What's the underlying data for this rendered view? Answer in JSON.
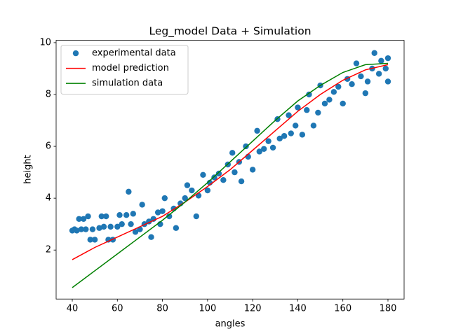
{
  "chart_data": {
    "type": "scatter",
    "title": "Leg_model Data + Simulation",
    "x_label": "angles",
    "y_label": "height",
    "xlim": [
      32.84,
      187.16
    ],
    "ylim": [
      0.11,
      10.09
    ],
    "xticks": [
      40,
      60,
      80,
      100,
      120,
      140,
      160,
      180
    ],
    "yticks": [
      2,
      4,
      6,
      8,
      10
    ],
    "legend": "upper left",
    "series": [
      {
        "name": "experimental data",
        "color": "#1f77b4",
        "style": "marker",
        "x": [
          40,
          41,
          42,
          43,
          44,
          45,
          46,
          47,
          48,
          49,
          50,
          52,
          53,
          54,
          55,
          56,
          57,
          58,
          60,
          61,
          62,
          64,
          65,
          66,
          67,
          68,
          70,
          71,
          72,
          74,
          75,
          76,
          78,
          79,
          80,
          81,
          83,
          85,
          86,
          88,
          90,
          91,
          93,
          95,
          96,
          98,
          100,
          101,
          103,
          105,
          107,
          109,
          111,
          112,
          114,
          115,
          117,
          118,
          120,
          122,
          123,
          125,
          127,
          129,
          131,
          132,
          134,
          136,
          137,
          139,
          140,
          142,
          144,
          145,
          147,
          149,
          150,
          152,
          154,
          156,
          158,
          160,
          162,
          164,
          166,
          168,
          170,
          171,
          173,
          174,
          176,
          177,
          179,
          180,
          180
        ],
        "values": [
          2.75,
          2.8,
          2.75,
          3.2,
          2.8,
          3.2,
          2.8,
          3.3,
          2.4,
          2.8,
          2.4,
          2.85,
          3.3,
          2.9,
          3.3,
          2.4,
          2.9,
          2.4,
          2.9,
          3.35,
          3.0,
          3.35,
          4.25,
          3.0,
          3.4,
          2.7,
          2.8,
          3.75,
          3.0,
          3.1,
          2.5,
          3.2,
          3.45,
          3.0,
          3.5,
          4.0,
          3.3,
          3.6,
          2.85,
          3.8,
          4.0,
          4.5,
          4.3,
          3.3,
          4.1,
          4.9,
          4.3,
          4.6,
          4.8,
          4.95,
          4.7,
          5.3,
          5.75,
          5.0,
          5.4,
          4.65,
          6.0,
          5.6,
          5.1,
          6.6,
          5.8,
          5.9,
          6.2,
          5.95,
          7.05,
          6.3,
          6.4,
          7.2,
          6.5,
          6.8,
          7.5,
          6.45,
          7.4,
          8.0,
          6.8,
          7.3,
          8.35,
          7.65,
          7.8,
          8.1,
          8.3,
          7.65,
          8.6,
          8.4,
          9.2,
          8.7,
          8.05,
          8.5,
          9.0,
          9.6,
          8.8,
          9.3,
          9.0,
          9.4,
          8.5
        ]
      },
      {
        "name": "model prediction",
        "color": "#ff0000",
        "style": "line",
        "x": [
          40,
          50,
          60,
          70,
          80,
          90,
          100,
          110,
          120,
          130,
          140,
          150,
          160,
          170,
          180
        ],
        "values": [
          1.63,
          2.1,
          2.5,
          2.9,
          3.3,
          3.85,
          4.45,
          5.1,
          5.85,
          6.6,
          7.35,
          8.0,
          8.55,
          8.95,
          9.15
        ]
      },
      {
        "name": "simulation data",
        "color": "#008000",
        "style": "line",
        "x": [
          40,
          50,
          60,
          70,
          80,
          90,
          100,
          110,
          120,
          130,
          140,
          150,
          160,
          170,
          180
        ],
        "values": [
          0.55,
          1.2,
          1.85,
          2.5,
          3.15,
          3.85,
          4.6,
          5.4,
          6.2,
          7.0,
          7.75,
          8.35,
          8.85,
          9.15,
          9.2
        ]
      }
    ]
  }
}
